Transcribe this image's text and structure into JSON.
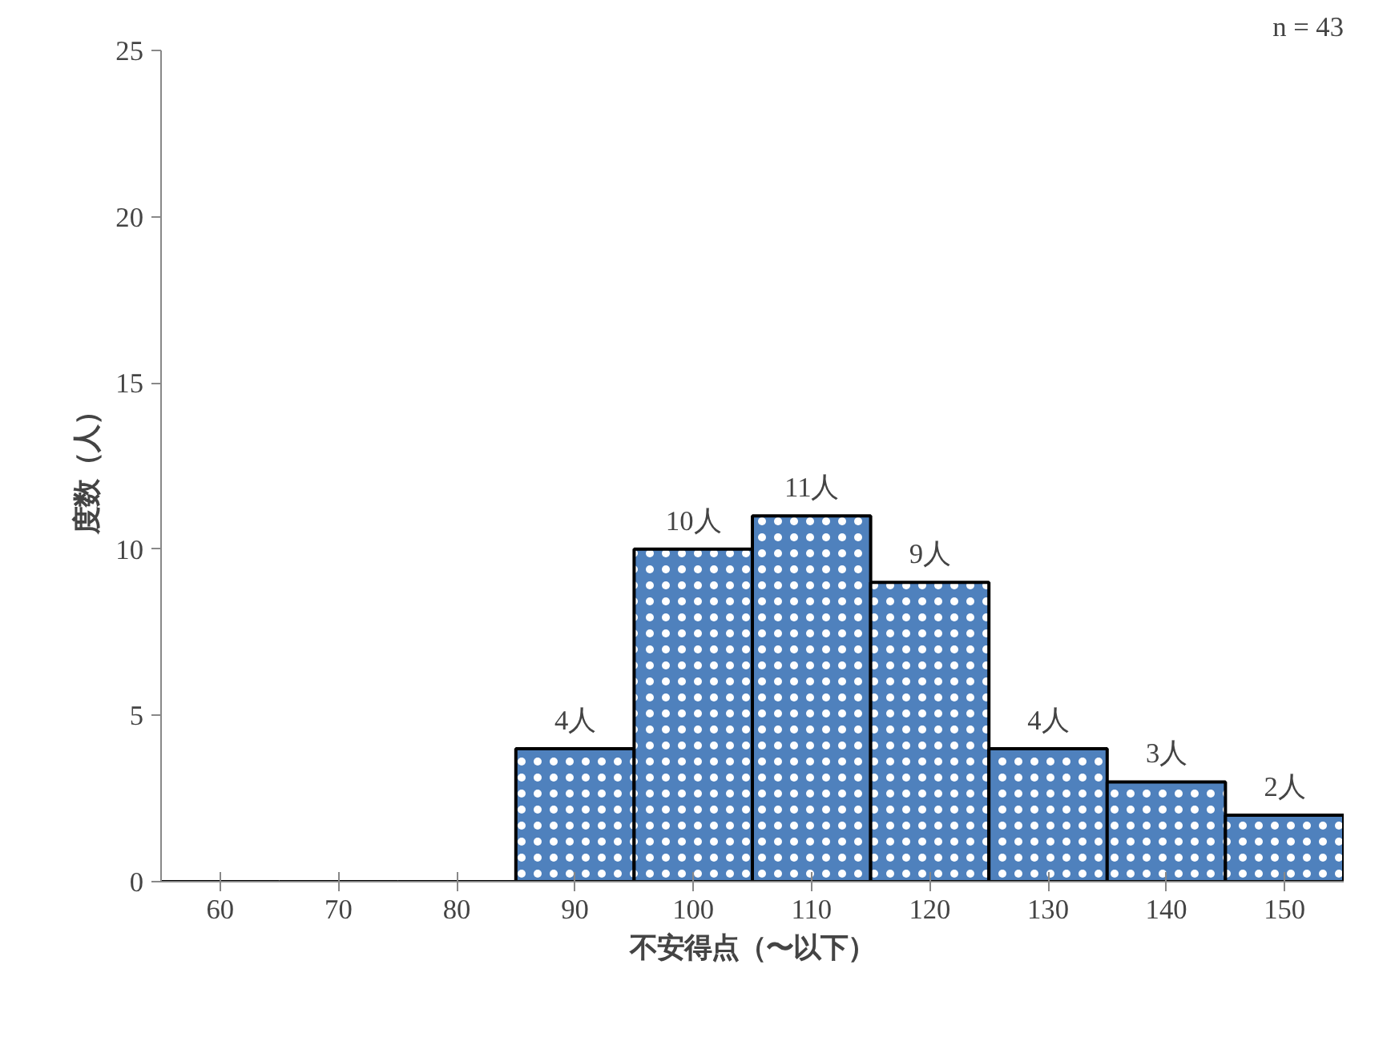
{
  "chart_data": {
    "type": "bar",
    "categories": [
      "60",
      "70",
      "80",
      "90",
      "100",
      "110",
      "120",
      "130",
      "140",
      "150"
    ],
    "values": [
      0,
      0,
      0,
      4,
      10,
      11,
      9,
      4,
      3,
      2
    ],
    "value_labels": [
      null,
      null,
      null,
      "4人",
      "10人",
      "11人",
      "9人",
      "4人",
      "3人",
      "2人"
    ],
    "color": "#4f81bd",
    "xlabel": "不安得点（〜以下）",
    "ylabel": "度数（人）",
    "ylim": [
      0,
      25
    ],
    "yticks": [
      0,
      5,
      10,
      15,
      20,
      25
    ],
    "annotations": [
      "n = 43"
    ],
    "grid": false
  }
}
